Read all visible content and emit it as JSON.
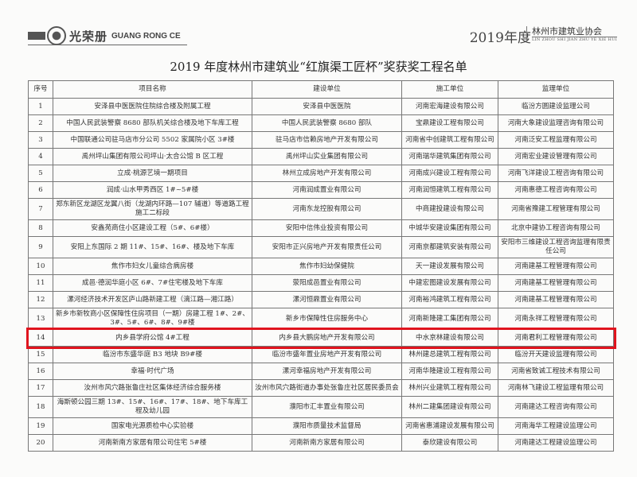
{
  "header": {
    "logo_cn": "光荣册",
    "logo_en": "GUANG RONG CE",
    "year": "2019年度",
    "assoc_name": "林州市建筑业协会",
    "assoc_pinyin": "LIN ZHOU SHI JIAN ZHU YE XIE HUI"
  },
  "title": "2019 年度林州市建筑业“红旗渠工匠杯”奖获奖工程名单",
  "highlight_color": "#e0141e",
  "table": {
    "columns": [
      "序号",
      "项目名称",
      "建设单位",
      "施工单位",
      "监理单位"
    ],
    "rows": [
      [
        "1",
        "安泽县中医医院住院综合楼及附属工程",
        "安泽县中医医院",
        "河南宏海建设有限公司",
        "临汾方圆建设监理公司"
      ],
      [
        "2",
        "中国人民武装警察 8680 部队机关综合楼及地下车库工程",
        "中国人民武装警察 8680 部队",
        "宝鼎建设工程有限公司",
        "河南大象建设监理咨询有限公司"
      ],
      [
        "3",
        "中国联通公司驻马店市分公司 5502 家属院小区 3#楼",
        "驻马店市信赖房地产开发有限公司",
        "河南省中创建筑工程有限公司",
        "河南泛安工程监理有限公司"
      ],
      [
        "4",
        "禹州坪山集团有限公司坪山·太合公馆 B 区工程",
        "禹州坪山实业集团有限公司",
        "河南瑞华建筑集团有限公司",
        "河南宏业建设管理有限公司"
      ],
      [
        "5",
        "立成·桃源艺境一期项目",
        "林州立成房地产开发有限公司",
        "河南成兴建设工程有限公司",
        "河南飞洋建设工程咨询有限公司"
      ],
      [
        "6",
        "润成·山水甲秀西区 1#~5#楼",
        "河南润成置业有限公司",
        "河南润恒建筑工程有限公司",
        "河南惠德工程咨询有限公司"
      ],
      [
        "7",
        "郑东新区龙湖区龙翼八街（龙湖内环路—107 辅道）等道路工程施工二标段",
        "河南东龙控股有限公司",
        "中商建投建设有限公司",
        "河南省豫建工程管理有限公司"
      ],
      [
        "8",
        "安鑫苑商住小区建设工程（5#、6#楼）",
        "安阳中信伟业投资有限公司",
        "中城华安建设集团有限公司",
        "北京中建协工程咨询有限公司"
      ],
      [
        "9",
        "安阳上东国际 2 期 11#、15#、16#、楼及地下车库",
        "安阳市正兴房地产开发有限责任公司",
        "河南京都建筑安装有限公司",
        "安阳市三维建设工程咨询监理有限责任公司"
      ],
      [
        "10",
        "焦作市妇女儿童综合病房楼",
        "焦作市妇幼保健院",
        "天一建设发展有限公司",
        "河南建基工程管理有限公司"
      ],
      [
        "11",
        "成邑·德润华庭小区 6#、7#住宅楼及地下车库",
        "荥阳成邑置业有限公司",
        "中建宏图建设发展有限公司",
        "河南建基工程管理有限公司"
      ],
      [
        "12",
        "漯河经济技术开发区庐山路新建工程（漓江路—湘江路）",
        "漯河恒鼎置业有限公司",
        "河南裕鸿建筑工程有限公司",
        "河南建基工程管理有限公司"
      ],
      [
        "13",
        "新乡市新牧商小区保障性住房项目（一期）房建工程 1#、2#、3#、5#、6#、8#、9#楼",
        "新乡市保障性住房服务中心",
        "河南新隆建工集团有限公司",
        "河南永祥工程管理有限公司"
      ],
      [
        "14",
        "内乡县学府公馆 4#工程",
        "内乡县大鹏房地产开发有限公司",
        "中水京林建设有限公司",
        "河南君利工程管理有限公司"
      ],
      [
        "15",
        "临汾市东盛华庭 B3 地块 B9#楼",
        "临汾市盛年置业房地产开发有限公司",
        "林州建总建筑工程有限公司",
        "临汾开天建设监理有限公司"
      ],
      [
        "16",
        "幸福·时代广场",
        "漯河幸福房地产开发有限公司",
        "河南华隆建设工程有限公司",
        "河南省致诚工程技术有限公司"
      ],
      [
        "17",
        "汝州市风穴路张鲁庄社区集体经济综合服务楼",
        "汝州市风穴路街道办事处张鲁庄社区居民委员会",
        "林州兴业建筑工程有限公司",
        "河南林飞建设工程监理有限公司"
      ],
      [
        "18",
        "海斯顿公园三期 13#、15#、16#、17#、18#、地下车库工程及幼儿园",
        "濮阳市汇丰置业有限公司",
        "林州二建集团建设有限公司",
        "河南建达工程咨询有限公司"
      ],
      [
        "19",
        "国家电光源质检中心实验楼",
        "濮阳市质量技术监督局",
        "河南省惠浦建设发展有限公司",
        "河南海华工程建设监理公司"
      ],
      [
        "20",
        "河南新南方家居有限公司住宅 5#楼",
        "河南新南方家居有限公司",
        "泰欣建设有限公司",
        "河南建达工程建设监理公司"
      ]
    ]
  }
}
